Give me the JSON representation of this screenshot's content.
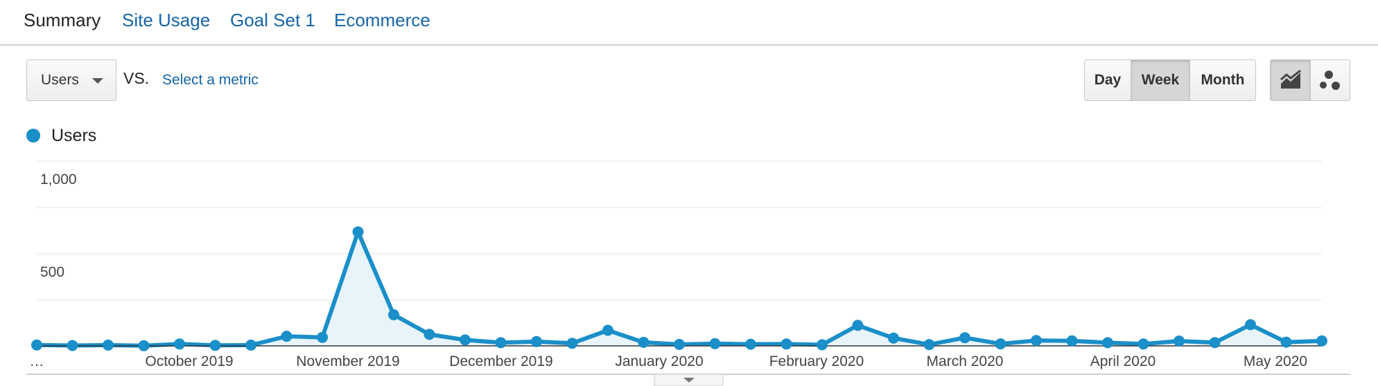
{
  "tabs": [
    {
      "label": "Summary",
      "active": true
    },
    {
      "label": "Site Usage",
      "active": false
    },
    {
      "label": "Goal Set 1",
      "active": false
    },
    {
      "label": "Ecommerce",
      "active": false
    }
  ],
  "controls": {
    "metric_select": "Users",
    "vs": "VS.",
    "select_metric": "Select a metric",
    "period_buttons": [
      {
        "label": "Day",
        "active": false
      },
      {
        "label": "Week",
        "active": true
      },
      {
        "label": "Month",
        "active": false
      }
    ],
    "view_buttons": [
      {
        "icon": "line-chart-icon",
        "active": true
      },
      {
        "icon": "motion-chart-icon",
        "active": false
      }
    ]
  },
  "legend": {
    "label": "Users",
    "color": "#1a8fc9"
  },
  "chart_data": {
    "type": "area",
    "color": "#1a8fc9",
    "fill": "#e8f4fa",
    "ylim": [
      0,
      1000
    ],
    "y_ticks": [
      {
        "value": 1000,
        "label": "1,000"
      },
      {
        "value": 500,
        "label": "500"
      }
    ],
    "grid": true,
    "x_labels": [
      "…",
      "October 2019",
      "November 2019",
      "December 2019",
      "January 2020",
      "February 2020",
      "March 2020",
      "April 2020",
      "May 2020"
    ],
    "series": [
      {
        "name": "Users",
        "values": [
          5,
          2,
          4,
          1,
          10,
          3,
          4,
          52,
          46,
          615,
          168,
          62,
          32,
          17,
          23,
          14,
          84,
          19,
          8,
          12,
          9,
          10,
          6,
          111,
          42,
          7,
          44,
          11,
          29,
          27,
          17,
          10,
          26,
          18,
          114,
          20,
          27
        ]
      }
    ]
  }
}
